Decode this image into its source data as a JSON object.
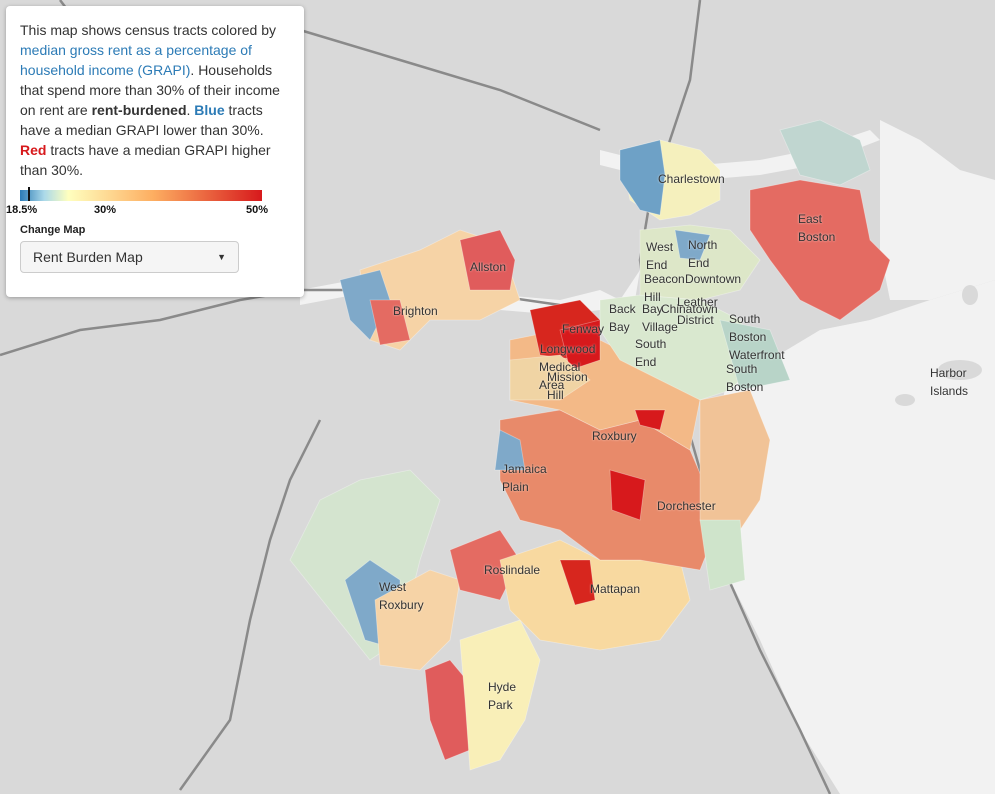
{
  "info": {
    "intro": "This map shows census tracts colored by ",
    "link": "median gross rent as a percentage of household income (GRAPI)",
    "sentence2a": ". Households that spend more than 30% of their income on rent are ",
    "rent_burdened": "rent-burdened",
    "blue": "Blue",
    "sentence3": " tracts have a median GRAPI lower than 30%.",
    "red": "Red",
    "sentence4": " tracts have a median GRAPI higher than 30%."
  },
  "legend": {
    "min_label": "18.5%",
    "mid_label": "30%",
    "max_label": "50%",
    "min_value": 18.5,
    "mid_value": 30,
    "max_value": 50,
    "colors": [
      "#2c7bb6",
      "#abd9e9",
      "#ffffbf",
      "#fdae61",
      "#d7191c"
    ]
  },
  "change_map": {
    "label": "Change Map",
    "selected": "Rent Burden Map"
  },
  "neighborhoods": [
    {
      "id": "charlestown",
      "lines": [
        "Charlestown"
      ]
    },
    {
      "id": "east-boston",
      "lines": [
        "East",
        "Boston"
      ]
    },
    {
      "id": "allston",
      "lines": [
        "Allston"
      ]
    },
    {
      "id": "brighton",
      "lines": [
        "Brighton"
      ]
    },
    {
      "id": "west-end",
      "lines": [
        "West",
        "End"
      ]
    },
    {
      "id": "north-end",
      "lines": [
        "North",
        "End"
      ]
    },
    {
      "id": "downtown",
      "lines": [
        "Downtown"
      ]
    },
    {
      "id": "beacon-hill",
      "lines": [
        "Beacon",
        "Hill"
      ]
    },
    {
      "id": "leather-district",
      "lines": [
        "Leather",
        "District"
      ]
    },
    {
      "id": "back-bay",
      "lines": [
        "Back",
        "Bay"
      ]
    },
    {
      "id": "bay-village",
      "lines": [
        "Bay",
        "Village"
      ]
    },
    {
      "id": "chinatown",
      "lines": [
        "Chinatown"
      ]
    },
    {
      "id": "fenway",
      "lines": [
        "Fenway"
      ]
    },
    {
      "id": "south-boston-waterfront",
      "lines": [
        "South",
        "Boston",
        "Waterfront"
      ]
    },
    {
      "id": "longwood",
      "lines": [
        "Longwood"
      ]
    },
    {
      "id": "south-end",
      "lines": [
        "South",
        "End"
      ]
    },
    {
      "id": "south-boston",
      "lines": [
        "South",
        "Boston"
      ]
    },
    {
      "id": "mission-hill",
      "lines": [
        "Mission",
        "Hill"
      ]
    },
    {
      "id": "medical-area",
      "lines": [
        "Medical",
        "Area"
      ]
    },
    {
      "id": "harbor-islands",
      "lines": [
        "Harbor",
        "Islands"
      ]
    },
    {
      "id": "roxbury",
      "lines": [
        "Roxbury"
      ]
    },
    {
      "id": "jamaica-plain",
      "lines": [
        "Jamaica",
        "Plain"
      ]
    },
    {
      "id": "dorchester",
      "lines": [
        "Dorchester"
      ]
    },
    {
      "id": "roslindale",
      "lines": [
        "Roslindale"
      ]
    },
    {
      "id": "mattapan",
      "lines": [
        "Mattapan"
      ]
    },
    {
      "id": "west-roxbury",
      "lines": [
        "West",
        "Roxbury"
      ]
    },
    {
      "id": "hyde-park",
      "lines": [
        "Hyde",
        "Park"
      ]
    }
  ]
}
